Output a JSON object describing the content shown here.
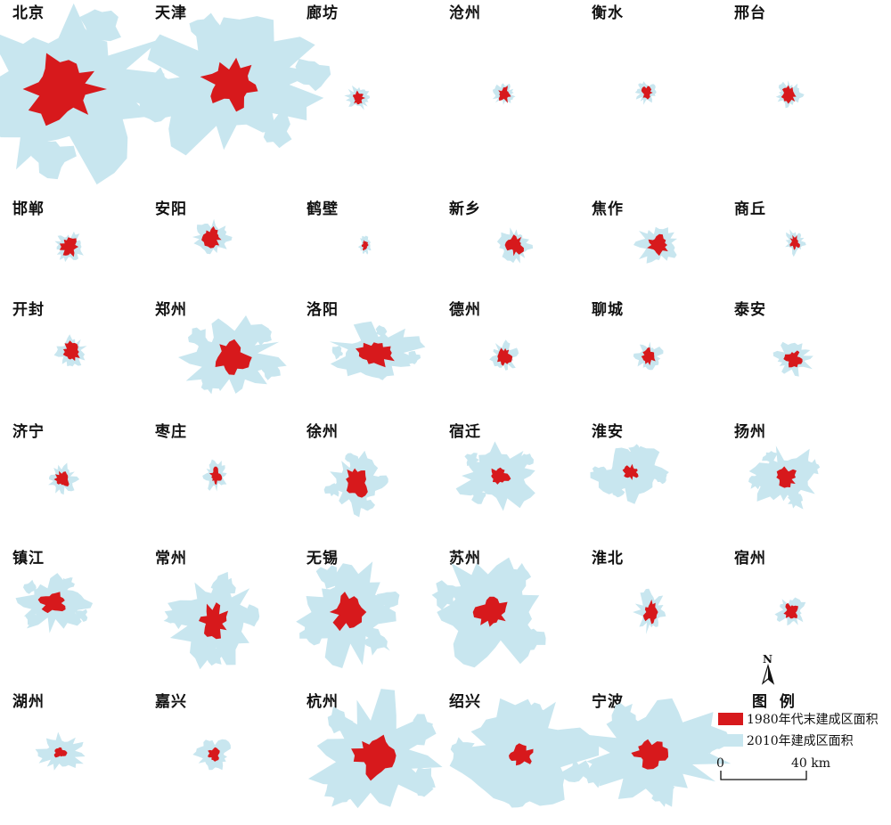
{
  "cities": [
    "北京",
    "天津",
    "廊坊",
    "沧州",
    "衡水",
    "邢台",
    "邯郸",
    "安阳",
    "鹤壁",
    "新乡",
    "焦作",
    "商丘",
    "开封",
    "郑州",
    "洛阳",
    "德州",
    "聊城",
    "泰安",
    "济宁",
    "枣庄",
    "徐州",
    "宿迁",
    "淮安",
    "扬州",
    "镇江",
    "常州",
    "无锡",
    "苏州",
    "淮北",
    "宿州",
    "湖州",
    "嘉兴",
    "杭州",
    "绍兴",
    "宁波"
  ],
  "legend": {
    "title": "图 例",
    "north": "N",
    "items": [
      {
        "label": "1980年代末建成区面积",
        "color": "#d7191c"
      },
      {
        "label": "2010年建成区面积",
        "color": "#c8e6ef"
      }
    ],
    "scale": {
      "start": "0",
      "end": "40 km"
    }
  }
}
